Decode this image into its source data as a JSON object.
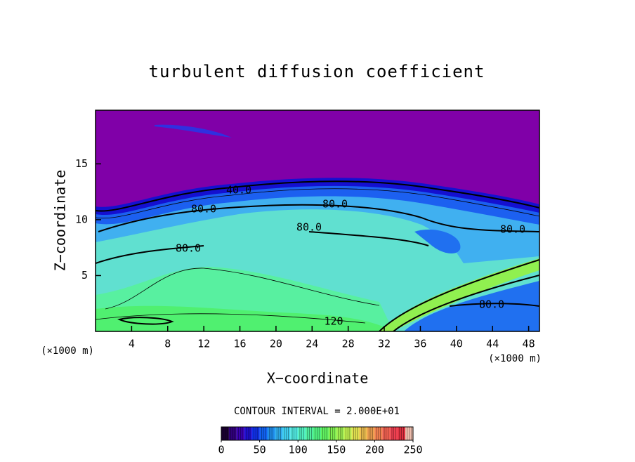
{
  "chart_data": {
    "type": "contour",
    "title": "turbulent diffusion coefficient",
    "x_label": "X−coordinate",
    "y_label": "Z−coordinate",
    "x_unit": "(×1000 m)",
    "y_unit": "(×1000 m)",
    "xlim": [
      0,
      49.2
    ],
    "xticks": [
      4,
      8,
      12,
      16,
      20,
      24,
      28,
      32,
      36,
      40,
      44,
      48
    ],
    "ylim": [
      0,
      19.8
    ],
    "yticks": [
      5,
      10,
      15
    ],
    "contour_interval_label": "CONTOUR INTERVAL = 2.000E+01",
    "contour_levels": [
      40,
      80,
      80,
      80,
      80,
      80,
      80,
      120
    ],
    "contour_value_labels": [
      "40.0",
      "80.0",
      "80.0",
      "80.0",
      "80.0",
      "80.0",
      "80.0",
      "120"
    ],
    "colorbar": {
      "lim": [
        0,
        250
      ],
      "ticks": [
        0,
        50,
        100,
        150,
        200,
        250
      ],
      "colors": [
        "#1a0030",
        "#30007a",
        "#3a00b0",
        "#2010d0",
        "#1030e8",
        "#1060f0",
        "#2090f0",
        "#30b0f0",
        "#40d0f0",
        "#50e8e0",
        "#50f0c0",
        "#50f0a0",
        "#50f080",
        "#60f060",
        "#80f050",
        "#a0f050",
        "#c0f050",
        "#e0e050",
        "#f0c050",
        "#f0a050",
        "#f08050",
        "#f06050",
        "#f04050",
        "#e03040",
        "#f0c0b0"
      ]
    }
  }
}
